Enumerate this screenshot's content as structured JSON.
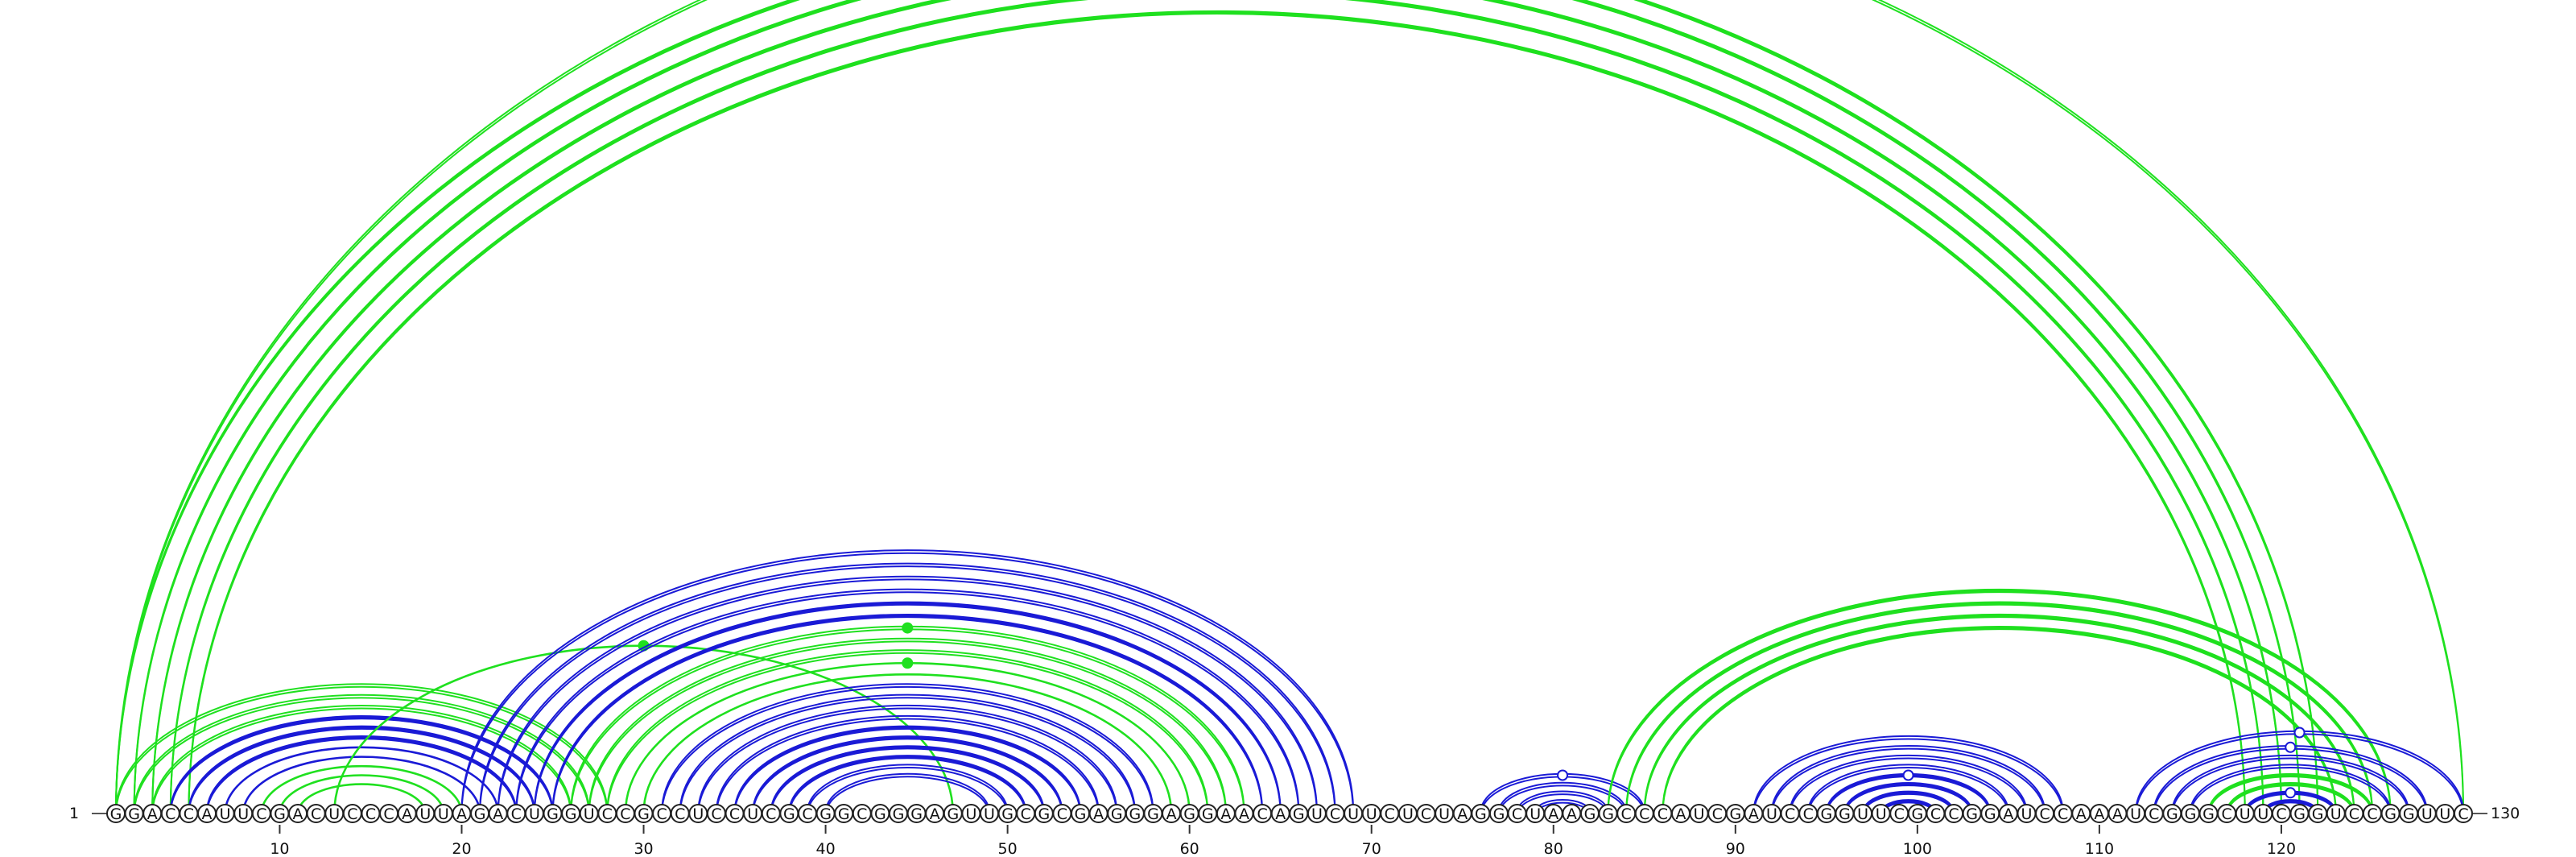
{
  "sequence": "GGACCAUUCGACUCCCAUUAGACUGGUCCGCCUCCUCGCGGCGGGAGUUGCGCGAGGGAGGAACAGUCUUCUCUAGGCUAAGGCCCAUCGAUCCGGUUCGCCGGAUCCAAAUCGGGCUUCGGUCCGGUUC",
  "start_label": "1",
  "end_label": "130",
  "ticks": [
    10,
    20,
    30,
    40,
    50,
    60,
    70,
    80,
    90,
    100,
    110,
    120
  ],
  "colors": {
    "blue": "#1a1ad6",
    "green": "#1fe01f"
  },
  "arc_groups": [
    {
      "color": "green",
      "style": "thick",
      "pairs": [
        [
          1,
          122
        ],
        [
          2,
          121
        ],
        [
          3,
          120
        ],
        [
          4,
          119
        ],
        [
          5,
          118
        ]
      ]
    },
    {
      "color": "green",
      "style": "double",
      "pairs": [
        [
          1,
          130
        ]
      ],
      "marker": "open"
    },
    {
      "color": "green",
      "style": "double",
      "pairs": [
        [
          1,
          28
        ],
        [
          2,
          27
        ],
        [
          3,
          26
        ]
      ]
    },
    {
      "color": "blue",
      "style": "thick",
      "pairs": [
        [
          4,
          25
        ],
        [
          5,
          24
        ],
        [
          6,
          23
        ]
      ]
    },
    {
      "color": "blue",
      "style": "single",
      "pairs": [
        [
          7,
          22
        ],
        [
          8,
          21
        ]
      ]
    },
    {
      "color": "green",
      "style": "single",
      "pairs": [
        [
          9,
          20
        ],
        [
          10,
          19
        ],
        [
          11,
          18
        ]
      ]
    },
    {
      "color": "green",
      "style": "single",
      "pairs": [
        [
          13,
          47
        ]
      ],
      "marker": "filled"
    },
    {
      "color": "blue",
      "style": "double",
      "pairs": [
        [
          20,
          69
        ],
        [
          21,
          68
        ],
        [
          22,
          67
        ],
        [
          23,
          66
        ]
      ]
    },
    {
      "color": "blue",
      "style": "thick",
      "pairs": [
        [
          24,
          65
        ],
        [
          25,
          64
        ]
      ]
    },
    {
      "color": "green",
      "style": "double",
      "pairs": [
        [
          26,
          63
        ],
        [
          27,
          62
        ],
        [
          28,
          61
        ]
      ],
      "marker": "filled"
    },
    {
      "color": "green",
      "style": "single",
      "pairs": [
        [
          29,
          60
        ],
        [
          30,
          59
        ]
      ],
      "marker": "filled"
    },
    {
      "color": "blue",
      "style": "double",
      "pairs": [
        [
          31,
          58
        ],
        [
          32,
          57
        ],
        [
          33,
          56
        ],
        [
          34,
          55
        ]
      ]
    },
    {
      "color": "blue",
      "style": "thick",
      "pairs": [
        [
          35,
          54
        ],
        [
          36,
          53
        ],
        [
          37,
          52
        ],
        [
          38,
          51
        ]
      ]
    },
    {
      "color": "blue",
      "style": "double",
      "pairs": [
        [
          39,
          50
        ],
        [
          40,
          49
        ]
      ]
    },
    {
      "color": "blue",
      "style": "double",
      "pairs": [
        [
          76,
          85
        ],
        [
          77,
          84
        ],
        [
          78,
          83
        ],
        [
          79,
          82
        ]
      ],
      "marker": "open"
    },
    {
      "color": "green",
      "style": "thick",
      "pairs": [
        [
          83,
          126
        ],
        [
          84,
          125
        ],
        [
          85,
          124
        ],
        [
          86,
          123
        ]
      ]
    },
    {
      "color": "blue",
      "style": "double",
      "pairs": [
        [
          91,
          108
        ],
        [
          92,
          107
        ],
        [
          93,
          106
        ],
        [
          94,
          105
        ]
      ]
    },
    {
      "color": "blue",
      "style": "thick",
      "pairs": [
        [
          95,
          104
        ],
        [
          96,
          103
        ],
        [
          97,
          102
        ],
        [
          98,
          101
        ]
      ],
      "marker": "open"
    },
    {
      "color": "blue",
      "style": "double",
      "pairs": [
        [
          112,
          130
        ]
      ],
      "marker": "open"
    },
    {
      "color": "blue",
      "style": "double",
      "pairs": [
        [
          113,
          128
        ],
        [
          114,
          127
        ],
        [
          115,
          126
        ]
      ],
      "marker": "open"
    },
    {
      "color": "green",
      "style": "thick",
      "pairs": [
        [
          116,
          125
        ],
        [
          117,
          124
        ]
      ]
    },
    {
      "color": "blue",
      "style": "thick",
      "pairs": [
        [
          118,
          123
        ],
        [
          119,
          122
        ]
      ],
      "marker": "open"
    }
  ]
}
